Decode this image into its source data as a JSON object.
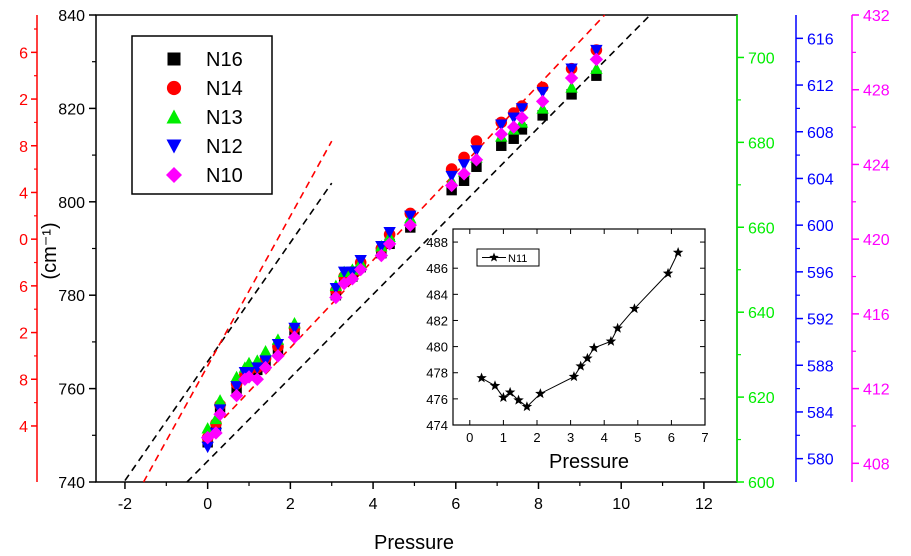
{
  "chart_data": [
    {
      "type": "scatter",
      "xlabel": "Pressure",
      "ylabel": "(cm⁻¹)",
      "xlim": [
        -2.7,
        12.8
      ],
      "ylim": [
        740,
        840
      ],
      "x_ticks": [
        "-2",
        "0",
        "2",
        "4",
        "6",
        "8",
        "10",
        "12"
      ],
      "x_tick_values": [
        -2,
        0,
        2,
        4,
        6,
        8,
        10,
        12
      ],
      "y_ticks": [
        "740",
        "760",
        "780",
        "800",
        "820",
        "840"
      ],
      "y_tick_values": [
        740,
        760,
        780,
        800,
        820,
        840
      ],
      "grid": false,
      "legend_position": "top-left",
      "series": [
        {
          "name": "N16",
          "color": "#000000",
          "marker": "square",
          "x": [
            0.0,
            0.2,
            0.3,
            0.7,
            0.9,
            1.0,
            1.2,
            1.4,
            1.7,
            2.1,
            3.1,
            3.3,
            3.5,
            3.7,
            4.2,
            4.4,
            4.9,
            5.9,
            6.2,
            6.5,
            7.1,
            7.4,
            7.6,
            8.1,
            8.8,
            9.4
          ],
          "y": [
            748.5,
            751.5,
            756.0,
            760.0,
            762.5,
            763.5,
            764.0,
            765.5,
            768.0,
            772.5,
            780.0,
            783.0,
            784.0,
            786.0,
            789.0,
            791.0,
            794.5,
            802.5,
            804.5,
            807.5,
            812.0,
            813.5,
            815.5,
            818.5,
            823.0,
            827.0
          ]
        },
        {
          "name": "N14",
          "color": "#ff0000",
          "marker": "circle",
          "x": [
            0.0,
            0.2,
            0.3,
            0.7,
            0.9,
            1.0,
            1.2,
            1.4,
            1.7,
            2.1,
            3.1,
            3.3,
            3.5,
            3.7,
            4.2,
            4.4,
            4.9,
            5.9,
            6.2,
            6.5,
            7.1,
            7.4,
            7.6,
            8.1,
            8.8,
            9.4
          ],
          "y": [
            749.5,
            752.5,
            756.5,
            761.0,
            763.0,
            764.0,
            764.5,
            766.5,
            769.0,
            773.0,
            781.0,
            784.0,
            785.0,
            787.0,
            790.0,
            793.0,
            797.5,
            807.0,
            809.5,
            813.0,
            817.0,
            819.0,
            820.5,
            824.5,
            828.5,
            832.5
          ]
        },
        {
          "name": "N13",
          "color": "#00ee00",
          "marker": "triangle-up",
          "x": [
            0.0,
            0.2,
            0.3,
            0.7,
            0.9,
            1.0,
            1.2,
            1.4,
            1.7,
            2.1,
            3.1,
            3.3,
            3.5,
            3.7,
            4.2,
            4.4,
            4.9,
            5.9,
            6.2,
            6.5,
            7.1,
            7.4,
            7.6,
            8.1,
            8.8,
            9.4
          ],
          "y": [
            751.5,
            753.5,
            757.5,
            762.5,
            764.5,
            765.5,
            766.0,
            768.0,
            770.5,
            774.0,
            782.0,
            785.0,
            785.5,
            787.0,
            790.5,
            792.5,
            796.5,
            804.5,
            806.5,
            809.5,
            814.0,
            815.5,
            817.0,
            820.0,
            824.5,
            828.5
          ]
        },
        {
          "name": "N12",
          "color": "#0000ff",
          "marker": "triangle-down",
          "x": [
            0.0,
            0.2,
            0.3,
            0.7,
            0.9,
            1.0,
            1.2,
            1.4,
            1.7,
            2.1,
            3.1,
            3.3,
            3.5,
            3.7,
            4.2,
            4.4,
            4.9,
            5.9,
            6.2,
            6.5,
            7.1,
            7.4,
            7.6,
            8.1,
            8.8,
            9.4
          ],
          "y": [
            747.5,
            750.5,
            755.5,
            760.5,
            763.5,
            763.5,
            764.5,
            766.0,
            769.5,
            773.0,
            781.5,
            785.0,
            785.0,
            787.5,
            790.5,
            793.5,
            797.0,
            805.5,
            808.0,
            811.0,
            816.5,
            818.0,
            820.0,
            823.5,
            828.5,
            832.5
          ]
        },
        {
          "name": "N10",
          "color": "#ff00ff",
          "marker": "diamond",
          "x": [
            0.0,
            0.2,
            0.3,
            0.7,
            0.9,
            1.0,
            1.2,
            1.4,
            1.7,
            2.1,
            3.1,
            3.3,
            3.5,
            3.7,
            4.2,
            4.4,
            4.9,
            5.9,
            6.2,
            6.5,
            7.1,
            7.4,
            7.6,
            8.1,
            8.8,
            9.4
          ],
          "y": [
            749.5,
            750.5,
            754.5,
            758.5,
            762.0,
            762.5,
            762.0,
            764.5,
            767.0,
            771.0,
            779.5,
            782.5,
            783.5,
            785.5,
            788.5,
            791.0,
            795.0,
            803.5,
            806.0,
            809.0,
            814.5,
            816.0,
            818.0,
            821.5,
            826.5,
            830.5
          ]
        }
      ],
      "fit_lines": [
        {
          "color": "#000000",
          "x": [
            -2.0,
            3.0
          ],
          "y": [
            740.3,
            804.0
          ]
        },
        {
          "color": "#ff0000",
          "x": [
            -1.55,
            3.0
          ],
          "y": [
            740.0,
            813.0
          ]
        },
        {
          "color": "#000000",
          "x": [
            -0.5,
            10.7
          ],
          "y": [
            740.0,
            840.0
          ]
        },
        {
          "color": "#ff0000",
          "x": [
            0.0,
            9.6
          ],
          "y": [
            750.0,
            840.0
          ]
        }
      ],
      "extra_axes": [
        {
          "side": "left",
          "color": "#ff0000",
          "ticks": [
            "4",
            "8",
            "2",
            "6",
            "0",
            "4",
            "8",
            "2",
            "6"
          ],
          "tick_y_values": [
            752,
            762,
            772,
            782,
            792,
            802,
            812,
            822,
            832
          ]
        },
        {
          "side": "right",
          "color": "#00ee00",
          "ticks": [
            "600",
            "620",
            "640",
            "660",
            "680",
            "700"
          ],
          "tick_y_values": [
            740,
            758.18,
            776.36,
            794.55,
            812.73,
            830.91
          ],
          "span": [
            600,
            710
          ]
        },
        {
          "side": "right",
          "color": "#0000ff",
          "ticks": [
            "580",
            "584",
            "588",
            "592",
            "596",
            "600",
            "604",
            "608",
            "612",
            "616"
          ],
          "tick_y_values": [
            745.0,
            755.0,
            765.0,
            775.0,
            785.0,
            795.0,
            805.0,
            815.0,
            825.0,
            835.0
          ],
          "span": [
            578,
            618
          ]
        },
        {
          "side": "right",
          "color": "#ff00ff",
          "ticks": [
            "408",
            "412",
            "416",
            "420",
            "424",
            "428",
            "432"
          ],
          "tick_y_values": [
            744.0,
            760.0,
            776.0,
            792.0,
            808.0,
            824.0,
            840.0
          ],
          "span": [
            407,
            432
          ]
        }
      ]
    },
    {
      "type": "line",
      "xlabel": "Pressure",
      "ylabel": "",
      "xlim": [
        -0.5,
        7.0
      ],
      "ylim": [
        474,
        489
      ],
      "x_ticks": [
        "0",
        "1",
        "2",
        "3",
        "4",
        "5",
        "6",
        "7"
      ],
      "x_tick_values": [
        0,
        1,
        2,
        3,
        4,
        5,
        6,
        7
      ],
      "y_ticks": [
        "474",
        "476",
        "478",
        "480",
        "482",
        "484",
        "486",
        "488"
      ],
      "y_tick_values": [
        474,
        476,
        478,
        480,
        482,
        484,
        486,
        488
      ],
      "legend_position": "top-left",
      "series": [
        {
          "name": "N11",
          "color": "#000000",
          "marker": "star",
          "x": [
            0.35,
            0.75,
            1.0,
            1.2,
            1.45,
            1.7,
            2.1,
            3.1,
            3.3,
            3.5,
            3.7,
            4.2,
            4.4,
            4.9,
            5.9,
            6.2
          ],
          "y": [
            477.6,
            477.0,
            476.1,
            476.5,
            475.9,
            475.4,
            476.4,
            477.7,
            478.5,
            479.1,
            479.9,
            480.4,
            481.4,
            482.9,
            485.6,
            487.2
          ]
        }
      ]
    }
  ]
}
